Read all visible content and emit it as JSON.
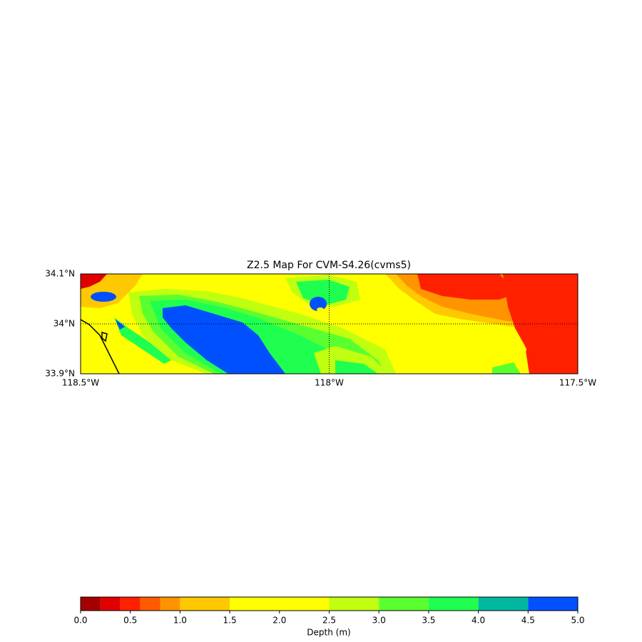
{
  "map": {
    "title": "Z2.5 Map For CVM-S4.26(cvms5)",
    "xlim": [
      -118.5,
      -117.5
    ],
    "ylim": [
      33.9,
      34.1
    ],
    "xticks": [
      {
        "value": -118.5,
        "label": "118.5°W"
      },
      {
        "value": -118.0,
        "label": "118°W"
      },
      {
        "value": -117.5,
        "label": "117.5°W"
      }
    ],
    "yticks": [
      {
        "value": 33.9,
        "label": "33.9°N"
      },
      {
        "value": 34.0,
        "label": "34°N"
      },
      {
        "value": 34.1,
        "label": "34.1°N"
      }
    ]
  },
  "colorbar": {
    "label": "Depth (m)",
    "bounds": [
      0,
      0.2,
      0.4,
      0.6,
      0.8,
      1.0,
      1.5,
      2.5,
      3.0,
      3.5,
      4.0,
      4.5,
      5.0
    ],
    "colors": [
      "#a50000",
      "#e00000",
      "#ff2000",
      "#ff5a00",
      "#ff9400",
      "#ffc800",
      "#ffff00",
      "#c0ff10",
      "#5aff30",
      "#1eff50",
      "#00b8a0",
      "#0050ff"
    ],
    "ticks": [
      {
        "value": 0,
        "label": "0.0"
      },
      {
        "value": 0.5,
        "label": "0.5"
      },
      {
        "value": 1.0,
        "label": "1.0"
      },
      {
        "value": 1.5,
        "label": "1.5"
      },
      {
        "value": 2.0,
        "label": "2.0"
      },
      {
        "value": 2.5,
        "label": "2.5"
      },
      {
        "value": 3.0,
        "label": "3.0"
      },
      {
        "value": 3.5,
        "label": "3.5"
      },
      {
        "value": 4.0,
        "label": "4.0"
      },
      {
        "value": 4.5,
        "label": "4.5"
      },
      {
        "value": 5.0,
        "label": "5.0"
      }
    ]
  }
}
